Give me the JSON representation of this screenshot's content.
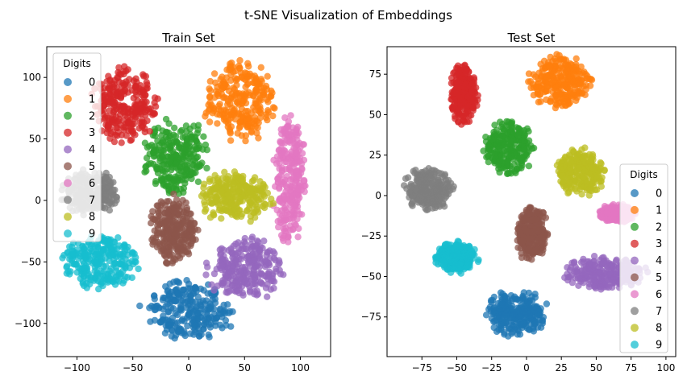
{
  "chart_data": {
    "title": "t-SNE Visualization of Embeddings",
    "colors": [
      "#1f77b4",
      "#ff7f0e",
      "#2ca02c",
      "#d62728",
      "#9467bd",
      "#8c564b",
      "#e377c2",
      "#7f7f7f",
      "#bcbd22",
      "#17becf"
    ],
    "panels": [
      {
        "type": "scatter",
        "title": "Train Set",
        "xlim": [
          -127,
          127
        ],
        "ylim": [
          -127,
          125
        ],
        "xticks": [
          -100,
          -50,
          0,
          50,
          100
        ],
        "yticks": [
          -100,
          -50,
          0,
          50,
          100
        ],
        "legend": {
          "title": "Digits",
          "placement": "top-left",
          "labels": [
            "0",
            "1",
            "2",
            "3",
            "4",
            "5",
            "6",
            "7",
            "8",
            "9"
          ]
        },
        "clusters": [
          {
            "digit": "0",
            "center": [
              0,
              -89
            ],
            "spread": [
              45,
              28
            ]
          },
          {
            "digit": "1",
            "center": [
              46,
              81
            ],
            "spread": [
              37,
              36
            ]
          },
          {
            "digit": "2",
            "center": [
              -12,
              36
            ],
            "spread": [
              32,
              34
            ]
          },
          {
            "digit": "3",
            "center": [
              -57,
              78
            ],
            "spread": [
              33,
              33
            ]
          },
          {
            "digit": "4",
            "center": [
              51,
              -56
            ],
            "spread": [
              38,
              28
            ]
          },
          {
            "digit": "5",
            "center": [
              -14,
              -24
            ],
            "spread": [
              25,
              31
            ]
          },
          {
            "digit": "6",
            "center": [
              90,
              16
            ],
            "spread": [
              16,
              60
            ]
          },
          {
            "digit": "7",
            "center": [
              -88,
              6
            ],
            "spread": [
              28,
              20
            ]
          },
          {
            "digit": "8",
            "center": [
              42,
              3
            ],
            "spread": [
              38,
              22
            ]
          },
          {
            "digit": "9",
            "center": [
              -79,
              -50
            ],
            "spread": [
              38,
              24
            ]
          }
        ]
      },
      {
        "type": "scatter",
        "title": "Test Set",
        "xlim": [
          -100,
          107
        ],
        "ylim": [
          -99.5,
          92
        ],
        "xticks": [
          -75,
          -50,
          -25,
          0,
          25,
          50,
          75,
          100
        ],
        "yticks": [
          -75,
          -50,
          -25,
          0,
          25,
          50,
          75
        ],
        "legend": {
          "title": "Digits",
          "placement": "lower-right",
          "labels": [
            "0",
            "1",
            "2",
            "3",
            "4",
            "5",
            "6",
            "7",
            "8",
            "9"
          ]
        },
        "clusters": [
          {
            "digit": "0",
            "center": [
              -7.5,
              -73
            ],
            "spread": [
              24,
              16
            ]
          },
          {
            "digit": "1",
            "center": [
              24,
              70
            ],
            "spread": [
              25,
              18
            ]
          },
          {
            "digit": "2",
            "center": [
              -13,
              29
            ],
            "spread": [
              20,
              19
            ]
          },
          {
            "digit": "3",
            "center": [
              -45,
              62
            ],
            "spread": [
              11,
              21
            ]
          },
          {
            "digit": "4",
            "center": [
              56,
              -48
            ],
            "spread": [
              33,
              12
            ]
          },
          {
            "digit": "5",
            "center": [
              4,
              -23
            ],
            "spread": [
              12,
              20
            ]
          },
          {
            "digit": "6",
            "center": [
              65,
              -11
            ],
            "spread": [
              15,
              6
            ]
          },
          {
            "digit": "7",
            "center": [
              -71,
              4
            ],
            "spread": [
              20,
              14
            ]
          },
          {
            "digit": "8",
            "center": [
              39,
              14
            ],
            "spread": [
              21,
              16
            ]
          },
          {
            "digit": "9",
            "center": [
              -51,
              -38
            ],
            "spread": [
              17,
              11
            ]
          }
        ]
      }
    ]
  }
}
